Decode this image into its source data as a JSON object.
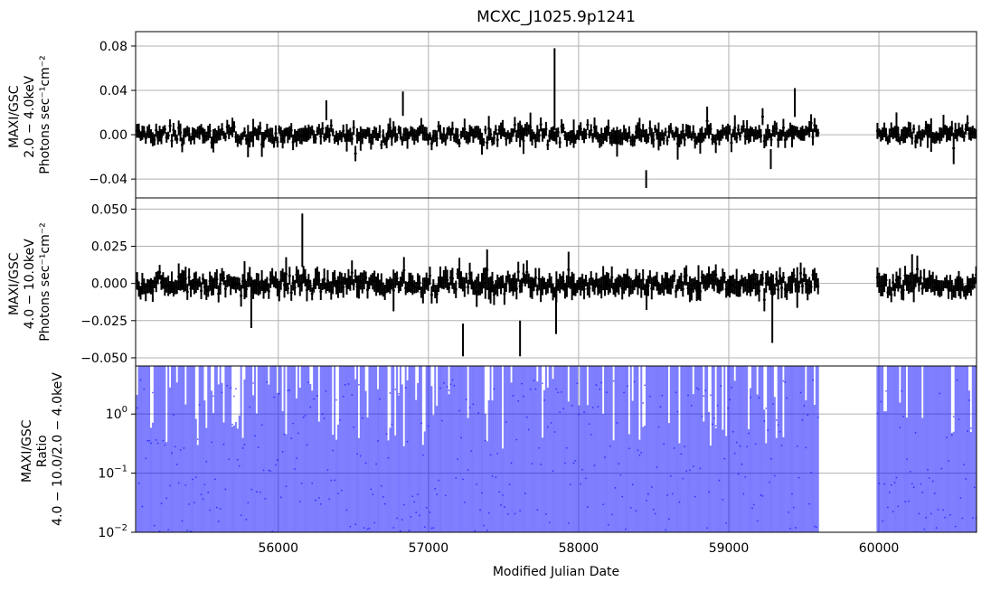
{
  "chart_data": [
    {
      "type": "scatter",
      "panel": "top",
      "title": "MCXC_J1025.9p1241",
      "ylabel_lines": [
        "MAXI/GSC",
        "2.0 − 4.0keV",
        "Photons sec⁻¹cm⁻²"
      ],
      "ylim": [
        -0.057,
        0.093
      ],
      "yticks": [
        0.08,
        0.04,
        0.0,
        -0.04
      ],
      "ytick_labels": [
        "0.08",
        "0.04",
        "0.00",
        "−0.04"
      ],
      "xlim": [
        55050,
        60650
      ],
      "xticks": [
        56000,
        57000,
        58000,
        59000,
        60000
      ],
      "grid": true,
      "series": [
        {
          "marker": "errorbar",
          "color": "#000000",
          "bin_days": 30,
          "coverage": [
            [
              55060,
              59600
            ],
            [
              59990,
              60650
            ]
          ]
        }
      ],
      "notable_points": [
        {
          "x": 57840,
          "y": 0.041,
          "yerr": 0.037
        },
        {
          "x": 58450,
          "y": -0.04,
          "yerr": 0.008
        },
        {
          "x": 59440,
          "y": 0.029,
          "yerr": 0.013
        },
        {
          "x": 56320,
          "y": 0.022,
          "yerr": 0.009
        },
        {
          "x": 56830,
          "y": 0.028,
          "yerr": 0.011
        },
        {
          "x": 59280,
          "y": -0.022,
          "yerr": 0.009
        },
        {
          "x": 60430,
          "y": 0.008,
          "yerr": 0.01
        }
      ]
    },
    {
      "type": "scatter",
      "panel": "middle",
      "ylabel_lines": [
        "MAXI/GSC",
        "4.0 − 10.0keV",
        "Photons sec⁻¹cm⁻²"
      ],
      "ylim": [
        -0.0555,
        0.0575
      ],
      "yticks": [
        0.05,
        0.025,
        0.0,
        -0.025,
        -0.05
      ],
      "ytick_labels": [
        "0.050",
        "0.025",
        "0.000",
        "−0.025",
        "−0.050"
      ],
      "xlim": [
        55050,
        60650
      ],
      "xticks": [
        56000,
        57000,
        58000,
        59000,
        60000
      ],
      "grid": true,
      "series": [
        {
          "marker": "errorbar",
          "color": "#000000",
          "bin_days": 30,
          "coverage": [
            [
              55060,
              59600
            ],
            [
              59990,
              60650
            ]
          ]
        }
      ],
      "notable_points": [
        {
          "x": 56160,
          "y": 0.029,
          "yerr": 0.018
        },
        {
          "x": 57230,
          "y": -0.038,
          "yerr": 0.011
        },
        {
          "x": 57610,
          "y": -0.037,
          "yerr": 0.012
        },
        {
          "x": 59290,
          "y": -0.021,
          "yerr": 0.019
        },
        {
          "x": 57850,
          "y": -0.02,
          "yerr": 0.014
        },
        {
          "x": 55820,
          "y": -0.015,
          "yerr": 0.015
        }
      ]
    },
    {
      "type": "scatter",
      "panel": "bottom",
      "ylabel_lines": [
        "MAXI/GSC",
        "Ratio",
        "4.0 − 10.0/2.0 − 4.0keV"
      ],
      "xlabel": "Modified Julian Date",
      "yscale": "log",
      "ylim": [
        0.01,
        6.5
      ],
      "yticks": [
        1,
        0.1,
        0.01
      ],
      "ytick_labels": [
        "10^0",
        "10^-1",
        "10^-2"
      ],
      "xlim": [
        55050,
        60650
      ],
      "xticks": [
        56000,
        57000,
        58000,
        59000,
        60000
      ],
      "xtick_labels": [
        "56000",
        "57000",
        "58000",
        "59000",
        "60000"
      ],
      "grid": true,
      "series": [
        {
          "marker": "errorbar",
          "color": "#0000ff",
          "alpha": 0.5,
          "bin_days": 30,
          "coverage": [
            [
              55060,
              59600
            ],
            [
              59990,
              60650
            ]
          ]
        }
      ]
    }
  ]
}
